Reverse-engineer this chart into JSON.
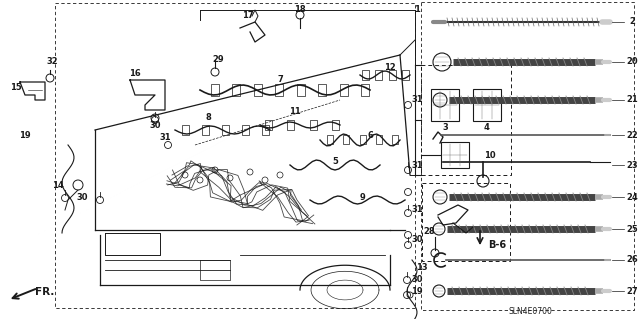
{
  "bg_color": "#ffffff",
  "line_color": "#1a1a1a",
  "gray_color": "#555555",
  "light_gray": "#999999",
  "label_fontsize": 6.0,
  "ref_code": "SLN4E0700",
  "b6_label": "B-6",
  "fr_label": "FR."
}
